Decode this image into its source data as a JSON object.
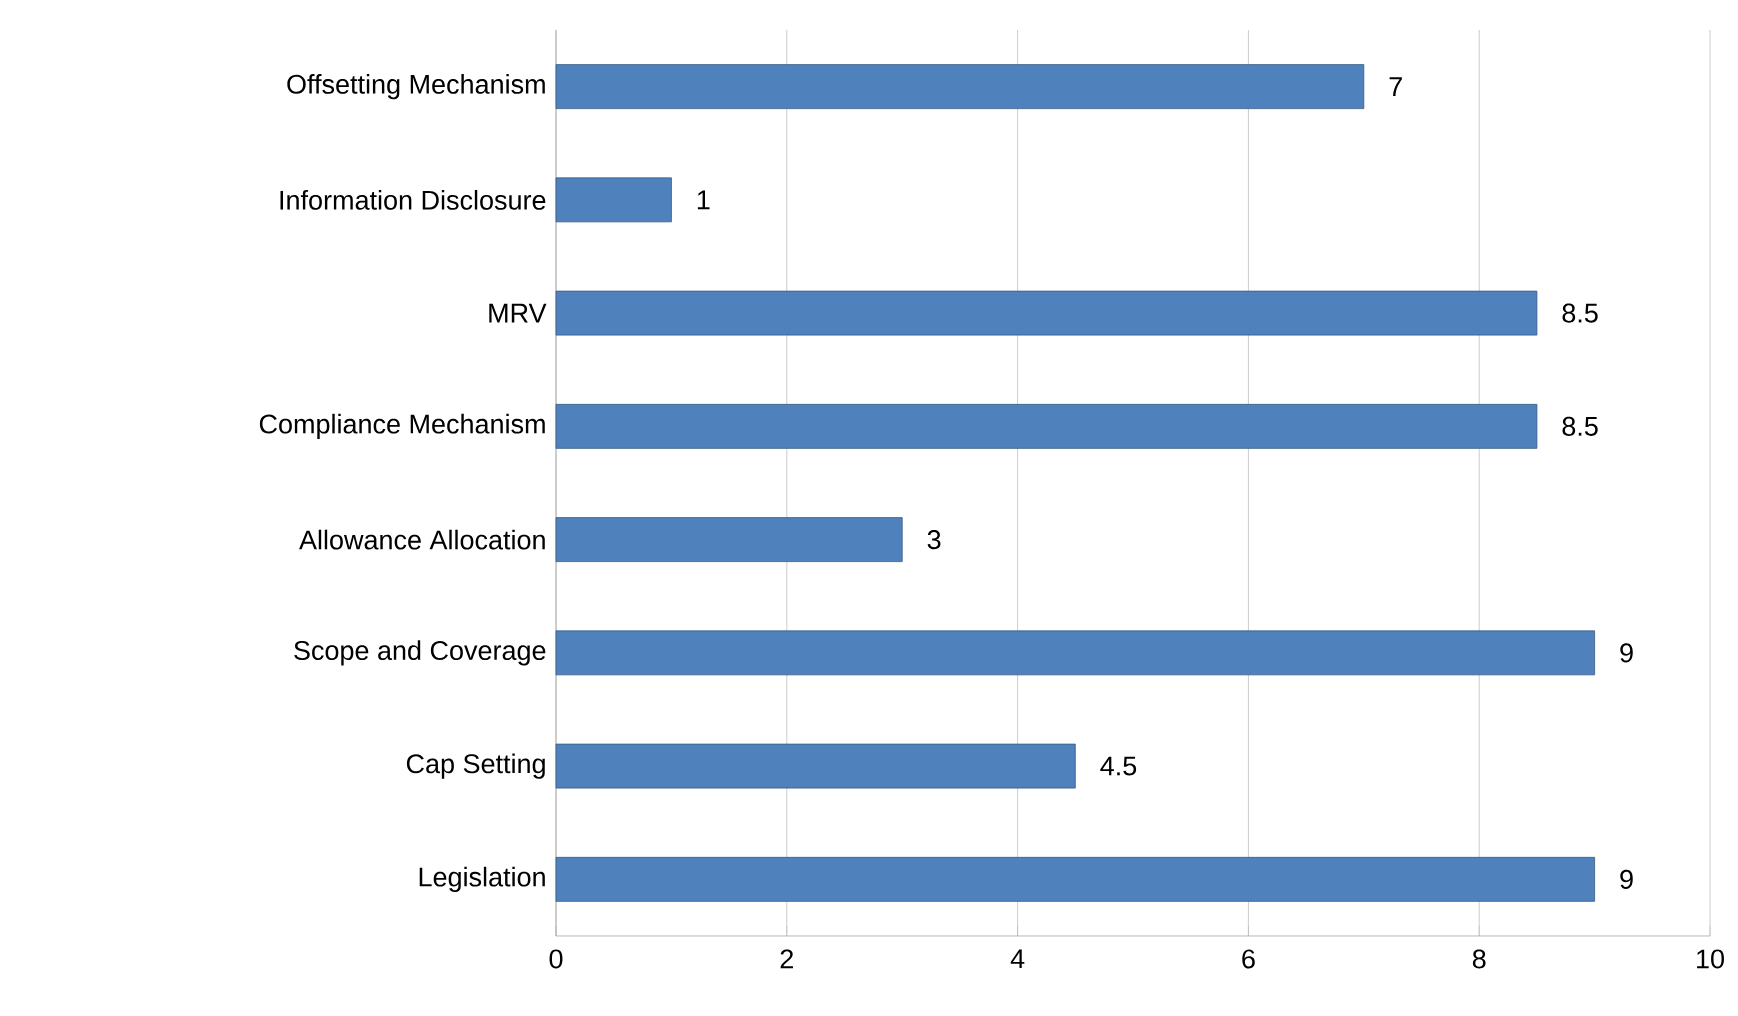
{
  "chart_data": {
    "type": "bar",
    "orientation": "horizontal",
    "categories": [
      "Offsetting Mechanism",
      "Information Disclosure",
      "MRV",
      "Compliance Mechanism",
      "Allowance Allocation",
      "Scope and Coverage",
      "Cap Setting",
      "Legislation"
    ],
    "values": [
      7,
      1,
      8.5,
      8.5,
      3,
      9,
      4.5,
      9
    ],
    "color": "#4f81bd",
    "xlim": [
      0,
      10
    ],
    "xticks": [
      0,
      2,
      4,
      6,
      8,
      10
    ],
    "grid": "x",
    "data_labels": true
  }
}
